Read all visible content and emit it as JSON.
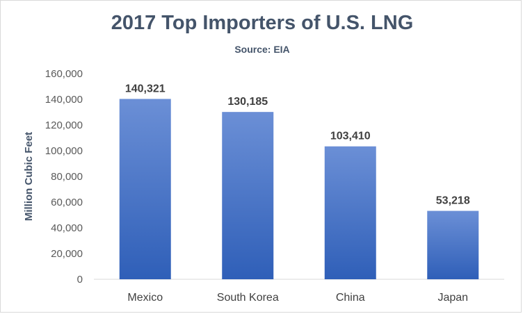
{
  "chart_data": {
    "type": "bar",
    "title": "2017 Top Importers of U.S. LNG",
    "subtitle": "Source: EIA",
    "ylabel": "Million Cubic Feet",
    "xlabel": "",
    "categories": [
      "Mexico",
      "South Korea",
      "China",
      "Japan"
    ],
    "values": [
      140321,
      130185,
      103410,
      53218
    ],
    "data_labels": [
      "140,321",
      "130,185",
      "103,410",
      "53,218"
    ],
    "yticks": [
      "0",
      "20,000",
      "40,000",
      "60,000",
      "80,000",
      "100,000",
      "120,000",
      "140,000",
      "160,000"
    ],
    "ylim": [
      0,
      160000
    ],
    "grid": false,
    "legend": "none",
    "bar_color": "#4472c4",
    "bar_color_top": "#6b8fd6",
    "bar_color_bottom": "#2f5fb8"
  }
}
